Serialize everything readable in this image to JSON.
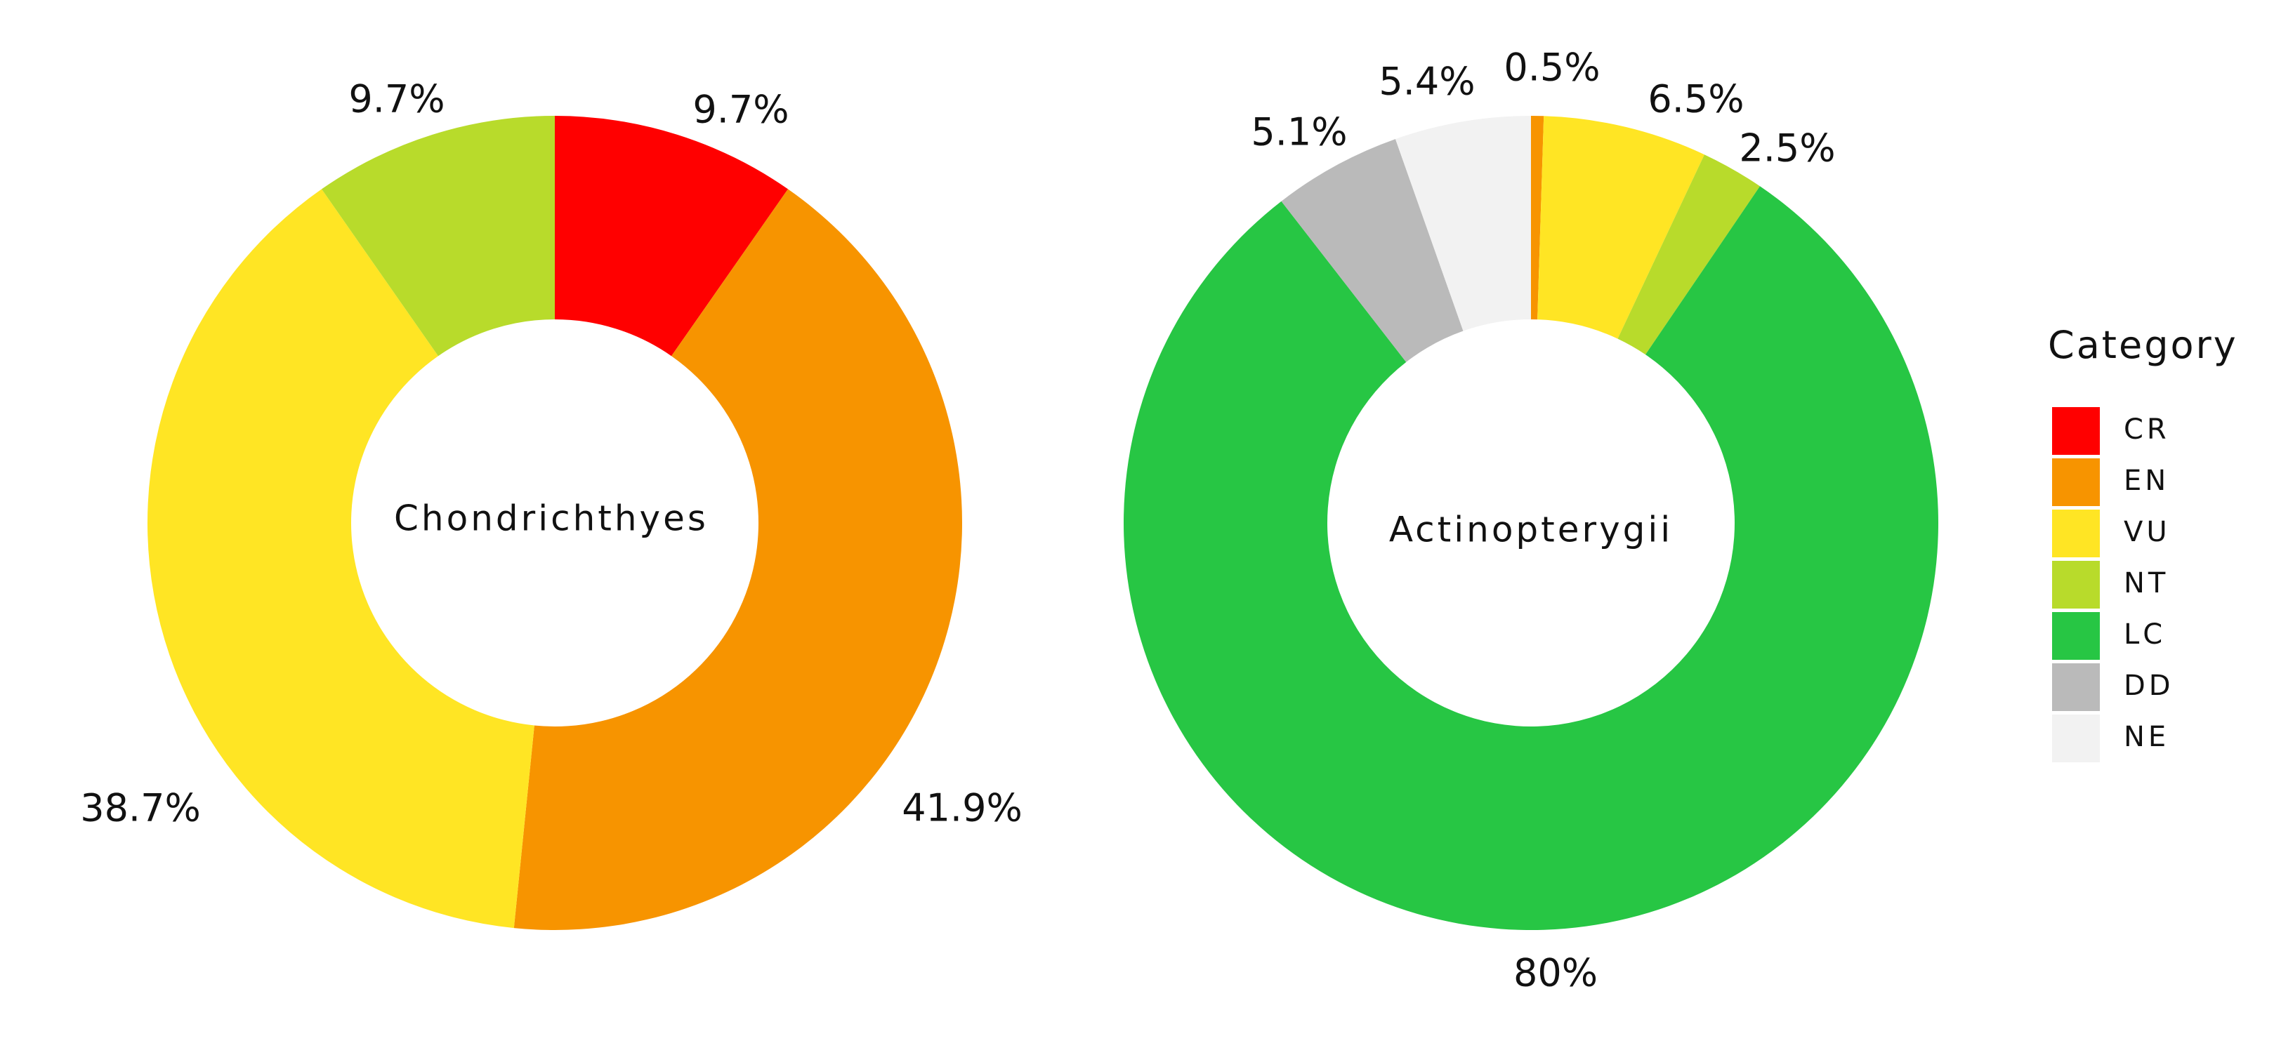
{
  "chart_data": [
    {
      "type": "pie",
      "subtype": "donut",
      "title": "Chondrichthyes",
      "categories": [
        "CR",
        "EN",
        "VU",
        "NT",
        "LC",
        "DD",
        "NE"
      ],
      "values": [
        9.7,
        41.9,
        38.7,
        9.7,
        0,
        0,
        0
      ],
      "labels": [
        "9.7%",
        "41.9%",
        "38.7%",
        "9.7%",
        "",
        "",
        ""
      ]
    },
    {
      "type": "pie",
      "subtype": "donut",
      "title": "Actinopterygii",
      "categories": [
        "CR",
        "EN",
        "VU",
        "NT",
        "LC",
        "DD",
        "NE"
      ],
      "values": [
        0,
        0.5,
        6.5,
        2.5,
        80,
        5.1,
        5.4
      ],
      "labels": [
        "",
        "0.5%",
        "6.5%",
        "2.5%",
        "80%",
        "5.1%",
        "5.4%"
      ]
    }
  ],
  "legend": {
    "title": "Category",
    "position": "right",
    "items": [
      {
        "label": "CR",
        "color": "#FF0000"
      },
      {
        "label": "EN",
        "color": "#F79400"
      },
      {
        "label": "VU",
        "color": "#FFE524"
      },
      {
        "label": "NT",
        "color": "#B8DB2B"
      },
      {
        "label": "LC",
        "color": "#27C644"
      },
      {
        "label": "DD",
        "color": "#BABABA"
      },
      {
        "label": "NE",
        "color": "#F2F2F2"
      }
    ]
  }
}
